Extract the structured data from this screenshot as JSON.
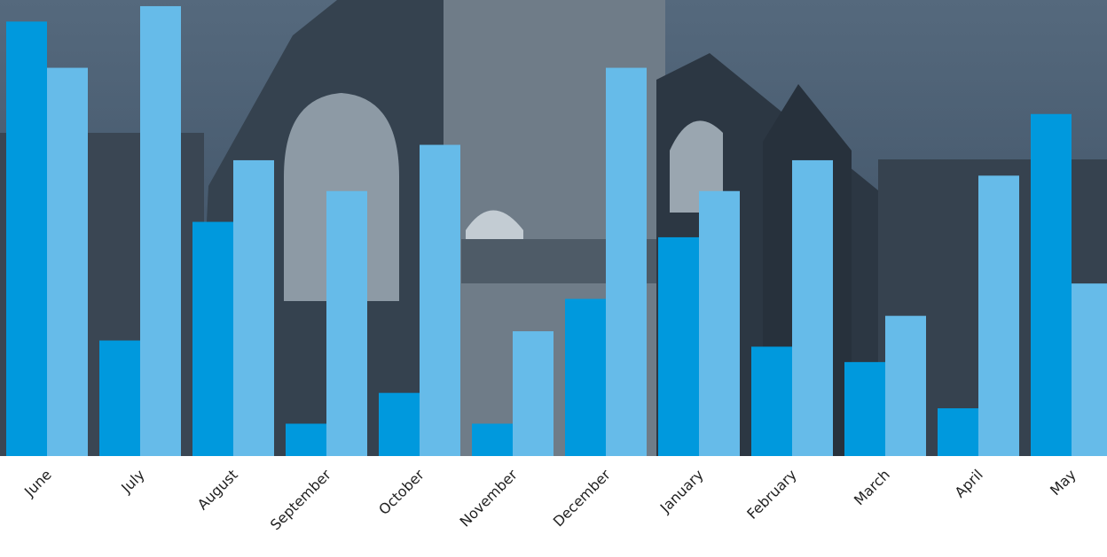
{
  "chart_data": {
    "type": "bar",
    "categories": [
      "June",
      "July",
      "August",
      "September",
      "October",
      "November",
      "December",
      "January",
      "February",
      "March",
      "April",
      "May"
    ],
    "series": [
      {
        "values": [
          28.2,
          7.5,
          15.2,
          2.1,
          4.1,
          2.1,
          10.2,
          14.2,
          7.1,
          6.1,
          3.1,
          22.2
        ]
      },
      {
        "values": [
          25.2,
          29.2,
          19.2,
          17.2,
          20.2,
          8.1,
          25.2,
          17.2,
          19.2,
          9.1,
          18.2,
          11.2
        ]
      }
    ],
    "ylim": [
      0,
      29.6
    ],
    "colors": {
      "series": [
        "#0099dd",
        "#66bbe9"
      ],
      "photo_sky": "#4c6276",
      "photo_building": "#2f3b48"
    },
    "grid": false,
    "legend": "none",
    "xlabel": "",
    "ylabel": ""
  }
}
